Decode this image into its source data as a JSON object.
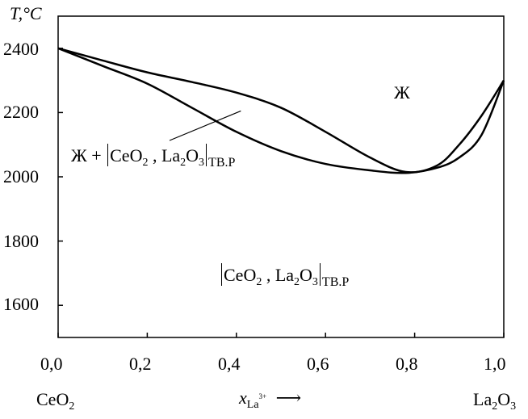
{
  "chart_data": {
    "type": "line",
    "title": "",
    "ylabel": "T,°C",
    "xlabel_symbol": "x",
    "xlabel_sub": "La",
    "xlabel_sup": "3+",
    "xlabel_arrow": "⟶",
    "left_component": {
      "base": "CeO",
      "sub": "2"
    },
    "right_component": {
      "base1": "La",
      "sub1": "2",
      "base2": "O",
      "sub2": "3"
    },
    "xlim": [
      0.0,
      1.0
    ],
    "ylim": [
      1500,
      2500
    ],
    "x_ticks": [
      0.0,
      0.2,
      0.4,
      0.6,
      0.8,
      1.0
    ],
    "x_tick_labels": [
      "0,0",
      "0,2",
      "0,4",
      "0,6",
      "0,8",
      "1,0"
    ],
    "y_ticks": [
      1600,
      1800,
      2000,
      2200,
      2400
    ],
    "y_tick_labels": [
      "1600",
      "1800",
      "2000",
      "2200",
      "2400"
    ],
    "grid": false,
    "series": [
      {
        "role": "liquidus",
        "x": [
          0.0,
          0.1,
          0.2,
          0.3,
          0.4,
          0.5,
          0.6,
          0.7,
          0.78,
          0.85,
          0.9,
          0.95,
          1.0
        ],
        "y": [
          2400,
          2362,
          2325,
          2295,
          2262,
          2215,
          2140,
          2060,
          2015,
          2035,
          2100,
          2190,
          2300
        ]
      },
      {
        "role": "solidus",
        "x": [
          0.0,
          0.1,
          0.2,
          0.3,
          0.4,
          0.5,
          0.6,
          0.7,
          0.78,
          0.85,
          0.9,
          0.95,
          1.0
        ],
        "y": [
          2400,
          2345,
          2290,
          2215,
          2140,
          2080,
          2040,
          2020,
          2012,
          2028,
          2060,
          2130,
          2300
        ]
      }
    ],
    "annotations": {
      "liquid": "Ж",
      "two_phase": {
        "prefix": "Ж + ",
        "ceo": "CeO",
        "ceo_sub": "2",
        "sep": " , ",
        "la": "La",
        "la_sub": "2",
        "o": "O",
        "o_sub": "3",
        "suffix": "ТВ.Р"
      },
      "solid": {
        "ceo": "CeO",
        "ceo_sub": "2",
        "sep": " , ",
        "la": "La",
        "la_sub": "2",
        "o": "O",
        "o_sub": "3",
        "suffix": "ТВ.Р"
      }
    }
  }
}
